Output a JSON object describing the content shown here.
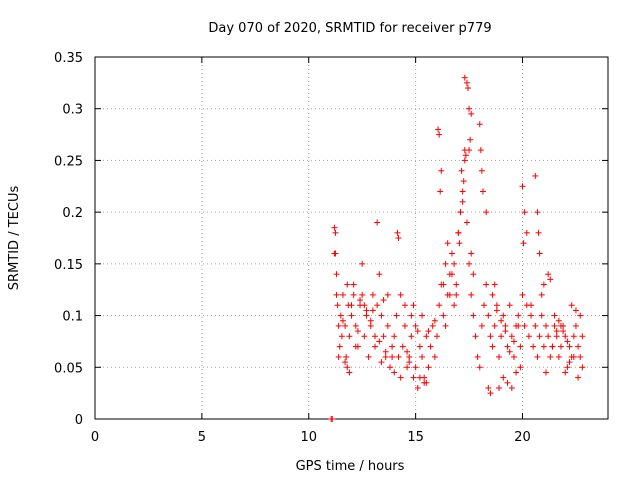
{
  "chart_data": {
    "type": "scatter",
    "title": "Day 070 of 2020, SRMTID for receiver p779",
    "xlabel": "GPS time / hours",
    "ylabel": "SRMTID / TECUs",
    "xlim": [
      0,
      24
    ],
    "ylim": [
      0,
      0.35
    ],
    "xticks": [
      "0",
      "5",
      "10",
      "15",
      "20"
    ],
    "yticks": [
      "0",
      "0.05",
      "0.1",
      "0.15",
      "0.2",
      "0.25",
      "0.3",
      "0.35"
    ],
    "grid": true,
    "marker": "plus",
    "color": "#ff0000",
    "series": [
      {
        "name": "p779",
        "x": [
          11.05,
          11.1,
          11.2,
          11.25,
          11.3,
          11.3,
          11.35,
          11.4,
          11.45,
          11.5,
          11.55,
          11.6,
          11.7,
          11.75,
          11.8,
          11.85,
          11.9,
          12.0,
          12.1,
          12.2,
          12.3,
          12.4,
          12.5,
          12.6,
          12.7,
          12.8,
          12.9,
          13.0,
          13.1,
          13.2,
          13.3,
          13.4,
          13.5,
          13.6,
          13.7,
          13.8,
          13.9,
          14.0,
          14.1,
          14.2,
          14.3,
          14.4,
          14.5,
          14.6,
          14.7,
          14.8,
          14.9,
          15.0,
          15.1,
          15.2,
          15.3,
          15.4,
          15.5,
          15.6,
          15.7,
          15.8,
          15.9,
          16.0,
          16.1,
          16.2,
          16.3,
          16.4,
          16.5,
          16.6,
          16.7,
          16.8,
          16.9,
          17.0,
          17.1,
          17.2,
          17.3,
          17.4,
          17.5,
          17.6,
          17.7,
          17.8,
          17.9,
          18.0,
          18.1,
          18.2,
          18.3,
          18.4,
          18.5,
          18.6,
          18.7,
          18.8,
          18.9,
          19.0,
          19.1,
          19.2,
          19.3,
          19.4,
          19.5,
          19.6,
          19.7,
          19.8,
          19.9,
          20.0,
          20.1,
          20.2,
          20.3,
          20.4,
          20.5,
          20.6,
          20.7,
          20.8,
          20.9,
          21.0,
          21.1,
          21.2,
          21.3,
          21.4,
          21.5,
          21.6,
          21.7,
          21.8,
          21.9,
          22.0,
          22.1,
          22.2,
          22.3,
          22.4,
          22.5,
          22.6,
          22.7,
          22.8,
          11.2,
          11.25,
          12.5,
          13.2,
          14.15,
          14.2,
          16.05,
          16.1,
          16.15,
          16.2,
          17.3,
          17.4,
          17.45,
          17.5,
          17.6,
          17.55,
          17.5,
          17.35,
          17.3,
          17.25,
          17.2,
          17.15,
          17.1,
          17.0,
          17.05,
          17.6,
          17.7,
          18.0,
          18.05,
          18.1,
          18.15,
          18.3,
          20.0,
          20.1,
          20.2,
          20.05,
          20.6,
          20.7,
          20.75,
          20.8,
          21.2,
          21.3,
          16.3,
          16.4,
          16.5,
          16.6,
          16.7,
          16.8,
          16.9,
          15.0,
          15.1,
          14.9,
          14.8,
          12.0,
          12.1,
          11.8,
          11.6,
          13.0,
          13.5,
          13.7,
          13.9,
          14.0,
          14.6,
          14.7,
          15.3,
          15.6,
          15.9,
          18.6,
          18.7,
          18.8,
          19.0,
          19.2,
          19.4,
          19.6,
          19.8,
          20.4,
          20.9,
          21.0,
          21.5,
          21.7,
          21.9,
          22.1,
          22.3,
          22.5,
          22.7,
          22.8,
          22.6,
          22.4,
          22.2,
          22.0,
          21.8,
          21.6,
          21.4,
          21.1,
          19.1,
          19.3,
          19.5,
          19.7,
          19.9,
          18.9,
          18.5,
          18.4,
          15.5,
          15.4,
          15.2,
          14.5,
          14.3,
          13.6,
          13.4,
          13.3,
          13.1,
          12.9,
          12.7,
          12.6,
          12.4,
          12.3,
          12.2,
          11.9,
          11.7,
          11.4
        ],
        "y": [
          0.0,
          0.0,
          0.16,
          0.18,
          0.14,
          0.12,
          0.11,
          0.09,
          0.07,
          0.1,
          0.08,
          0.12,
          0.09,
          0.06,
          0.05,
          0.11,
          0.08,
          0.1,
          0.13,
          0.09,
          0.07,
          0.11,
          0.12,
          0.08,
          0.1,
          0.06,
          0.09,
          0.12,
          0.07,
          0.11,
          0.14,
          0.1,
          0.08,
          0.06,
          0.09,
          0.05,
          0.07,
          0.08,
          0.1,
          0.06,
          0.04,
          0.07,
          0.09,
          0.05,
          0.06,
          0.08,
          0.04,
          0.05,
          0.03,
          0.07,
          0.06,
          0.04,
          0.08,
          0.05,
          0.07,
          0.09,
          0.06,
          0.08,
          0.11,
          0.13,
          0.1,
          0.09,
          0.12,
          0.14,
          0.16,
          0.11,
          0.13,
          0.18,
          0.2,
          0.22,
          0.25,
          0.19,
          0.15,
          0.12,
          0.1,
          0.08,
          0.06,
          0.05,
          0.09,
          0.11,
          0.13,
          0.1,
          0.08,
          0.07,
          0.09,
          0.11,
          0.06,
          0.08,
          0.1,
          0.09,
          0.07,
          0.11,
          0.08,
          0.06,
          0.09,
          0.1,
          0.07,
          0.12,
          0.09,
          0.11,
          0.08,
          0.1,
          0.07,
          0.09,
          0.06,
          0.08,
          0.1,
          0.07,
          0.09,
          0.08,
          0.06,
          0.07,
          0.09,
          0.08,
          0.06,
          0.07,
          0.09,
          0.08,
          0.05,
          0.07,
          0.06,
          0.08,
          0.09,
          0.07,
          0.06,
          0.08,
          0.185,
          0.16,
          0.15,
          0.19,
          0.18,
          0.175,
          0.28,
          0.275,
          0.22,
          0.24,
          0.33,
          0.325,
          0.32,
          0.3,
          0.295,
          0.27,
          0.26,
          0.255,
          0.26,
          0.23,
          0.21,
          0.24,
          0.2,
          0.18,
          0.17,
          0.16,
          0.14,
          0.285,
          0.26,
          0.24,
          0.22,
          0.2,
          0.225,
          0.2,
          0.18,
          0.17,
          0.235,
          0.2,
          0.18,
          0.16,
          0.14,
          0.135,
          0.13,
          0.15,
          0.17,
          0.12,
          0.14,
          0.15,
          0.12,
          0.09,
          0.085,
          0.11,
          0.1,
          0.11,
          0.12,
          0.13,
          0.095,
          0.105,
          0.115,
          0.12,
          0.06,
          0.045,
          0.065,
          0.055,
          0.1,
          0.085,
          0.095,
          0.12,
          0.13,
          0.105,
          0.095,
          0.085,
          0.065,
          0.075,
          0.09,
          0.11,
          0.12,
          0.13,
          0.1,
          0.095,
          0.085,
          0.075,
          0.11,
          0.105,
          0.1,
          0.05,
          0.04,
          0.06,
          0.055,
          0.045,
          0.09,
          0.085,
          0.07,
          0.045,
          0.04,
          0.035,
          0.03,
          0.045,
          0.05,
          0.03,
          0.025,
          0.03,
          0.035,
          0.035,
          0.04,
          0.11,
          0.12,
          0.065,
          0.055,
          0.075,
          0.08,
          0.095,
          0.105,
          0.11,
          0.115,
          0.085,
          0.07,
          0.045,
          0.055,
          0.06
        ]
      }
    ]
  }
}
